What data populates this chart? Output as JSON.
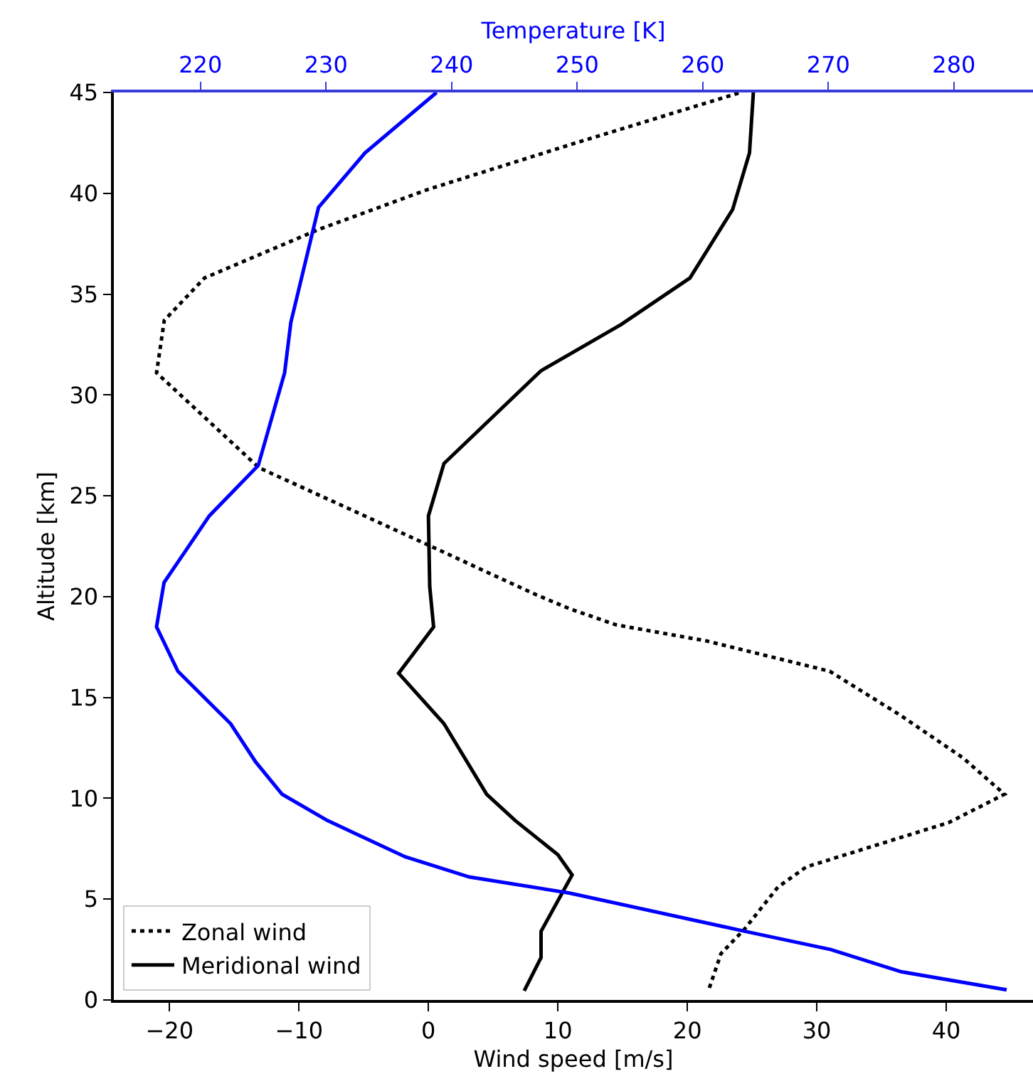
{
  "chart_data": {
    "type": "line",
    "xlabel": "Wind speed [m/s]",
    "ylabel": "Altitude [km]",
    "x2label": "Temperature [K]",
    "xlim": [
      -24.3,
      46.7
    ],
    "xticks": [
      -20,
      -10,
      0,
      10,
      20,
      30,
      40
    ],
    "x2lim": [
      213.1,
      286.3
    ],
    "x2ticks": [
      220,
      230,
      240,
      250,
      260,
      270,
      280
    ],
    "ylim": [
      0,
      45
    ],
    "yticks": [
      0,
      5,
      10,
      15,
      20,
      25,
      30,
      35,
      40,
      45
    ],
    "legend": "bottom left",
    "series": [
      {
        "name": "Zonal wind",
        "color": "#000000",
        "line_style": "dotted",
        "x": [
          21.7,
          22.6,
          24.4,
          27.0,
          29.2,
          40.2,
          44.5,
          41.3,
          36.5,
          31.0,
          21.5,
          14.5,
          10.9,
          8.3,
          -0.5,
          -13.1,
          -21.0,
          -20.4,
          -17.3,
          -8.5,
          0.0,
          10.9,
          24.1
        ],
        "values": [
          0.6,
          2.3,
          3.5,
          5.6,
          6.6,
          8.8,
          10.2,
          12.0,
          14.1,
          16.3,
          17.8,
          18.6,
          19.4,
          20.1,
          22.7,
          26.4,
          31.1,
          33.7,
          35.8,
          38.2,
          40.2,
          42.4,
          45
        ]
      },
      {
        "name": "Meridional wind",
        "color": "#000000",
        "line_style": "solid",
        "x": [
          7.4,
          8.7,
          8.7,
          11.1,
          10.0,
          6.7,
          4.5,
          1.2,
          -2.3,
          0.4,
          0.1,
          0.0,
          1.2,
          8.7,
          14.9,
          20.2,
          23.5,
          24.8,
          25.1
        ],
        "values": [
          0.45,
          2.1,
          3.4,
          6.2,
          7.2,
          8.9,
          10.2,
          13.7,
          16.2,
          18.5,
          20.5,
          24.0,
          26.6,
          31.2,
          33.5,
          35.8,
          39.2,
          42.0,
          45
        ]
      },
      {
        "color": "#0000ff",
        "line_style": "solid",
        "axis": "x2",
        "x": [
          284.2,
          275.8,
          270.2,
          263.4,
          249.4,
          241.4,
          236.3,
          230.1,
          226.5,
          224.4,
          222.4,
          218.2,
          216.5,
          217.1,
          220.7,
          224.6,
          226.7,
          227.2,
          229.4,
          233.1,
          238.8
        ],
        "values": [
          0.5,
          1.4,
          2.5,
          3.4,
          5.3,
          6.1,
          7.1,
          8.9,
          10.2,
          11.8,
          13.7,
          16.3,
          18.5,
          20.7,
          24.0,
          26.5,
          31.1,
          33.6,
          39.3,
          42.0,
          45
        ]
      }
    ]
  }
}
